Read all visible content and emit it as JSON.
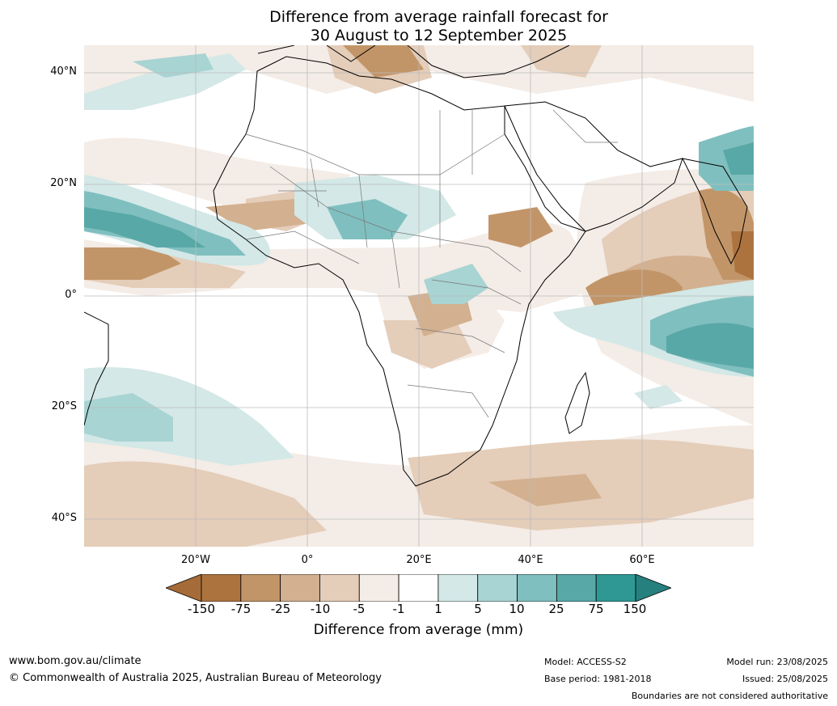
{
  "title": {
    "line1": "Difference from average rainfall forecast for",
    "line2": "30 August to 12 September 2025"
  },
  "map": {
    "lat_labels": [
      "40°N",
      "20°N",
      "0°",
      "20°S",
      "40°S"
    ],
    "lon_labels": [
      "20°W",
      "0°",
      "20°E",
      "40°E",
      "60°E"
    ]
  },
  "colorbar": {
    "ticks": [
      "-150",
      "-75",
      "-25",
      "-10",
      "-5",
      "-1",
      "1",
      "5",
      "10",
      "25",
      "75",
      "150"
    ],
    "colors": [
      "#a56b38",
      "#ad733f",
      "#c29568",
      "#d3b08f",
      "#e4cdb9",
      "#f4ece6",
      "#ffffff",
      "#d3e8e7",
      "#a8d4d3",
      "#80bfbf",
      "#58a8a7",
      "#2f9894",
      "#26807d"
    ],
    "label": "Difference from average (mm)"
  },
  "footer": {
    "website": "www.bom.gov.au/climate",
    "copyright": "© Commonwealth of Australia 2025, Australian Bureau of Meteorology",
    "model": "Model: ACCESS-S2",
    "base_period": "Base period: 1981-2018",
    "model_run": "Model run: 23/08/2025",
    "issued": "Issued: 25/08/2025",
    "disclaimer": "Boundaries are not considered authoritative"
  }
}
